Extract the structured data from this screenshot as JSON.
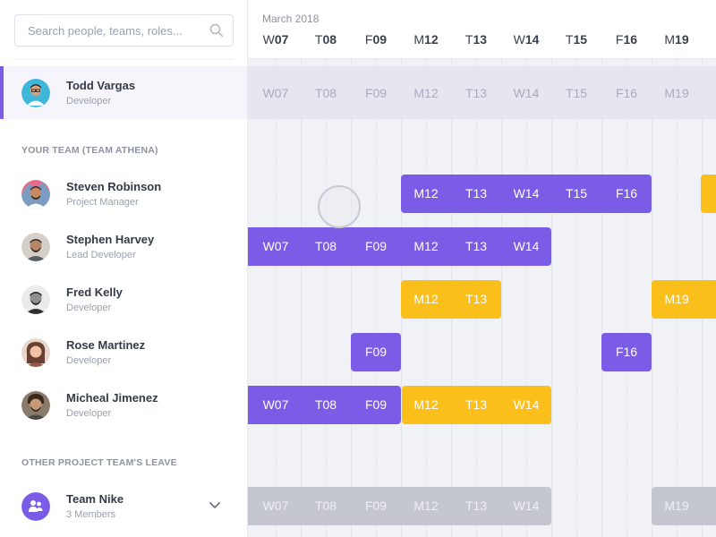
{
  "search": {
    "placeholder": "Search people, teams, roles..."
  },
  "current_user": {
    "name": "Todd Vargas",
    "role": "Developer"
  },
  "team_section": "YOUR TEAM (TEAM ATHENA)",
  "team": [
    {
      "name": "Steven Robinson",
      "role": "Project Manager"
    },
    {
      "name": "Stephen Harvey",
      "role": "Lead Developer"
    },
    {
      "name": "Fred Kelly",
      "role": "Developer"
    },
    {
      "name": "Rose Martinez",
      "role": "Developer"
    },
    {
      "name": "Micheal Jimenez",
      "role": "Developer"
    }
  ],
  "other_section": "OTHER PROJECT TEAM'S LEAVE",
  "other_team": {
    "name": "Team Nike",
    "members": "3 Members"
  },
  "calendar": {
    "month": "March 2018",
    "days": [
      {
        "l": "W",
        "n": "07"
      },
      {
        "l": "T",
        "n": "08"
      },
      {
        "l": "F",
        "n": "09"
      },
      {
        "l": "M",
        "n": "12"
      },
      {
        "l": "T",
        "n": "13"
      },
      {
        "l": "W",
        "n": "14"
      },
      {
        "l": "T",
        "n": "15"
      },
      {
        "l": "F",
        "n": "16"
      },
      {
        "l": "M",
        "n": "19"
      }
    ],
    "current_row_days": [
      "W07",
      "T08",
      "F09",
      "M12",
      "T13",
      "W14",
      "T15",
      "F16",
      "M19"
    ]
  },
  "leave": {
    "steven": [
      "M12",
      "T13",
      "W14",
      "T15",
      "F16"
    ],
    "stephen": [
      "W07",
      "T08",
      "F09",
      "M12",
      "T13",
      "W14"
    ],
    "fred_a": [
      "M12",
      "T13"
    ],
    "fred_b": [
      "M19"
    ],
    "rose_a": [
      "F09"
    ],
    "rose_b": [
      "F16"
    ],
    "micheal_a": [
      "W07",
      "T08",
      "F09"
    ],
    "micheal_b": [
      "M12",
      "T13",
      "W14"
    ],
    "nike_a": [
      "W07",
      "T08",
      "F09",
      "M12",
      "T13",
      "W14"
    ],
    "nike_b": [
      "M19"
    ]
  },
  "colors": {
    "accent": "#7a5ce6",
    "leave_approved": "#7a5ce6",
    "leave_pending": "#fbbf1c",
    "other_team": "#c4c7cf"
  }
}
